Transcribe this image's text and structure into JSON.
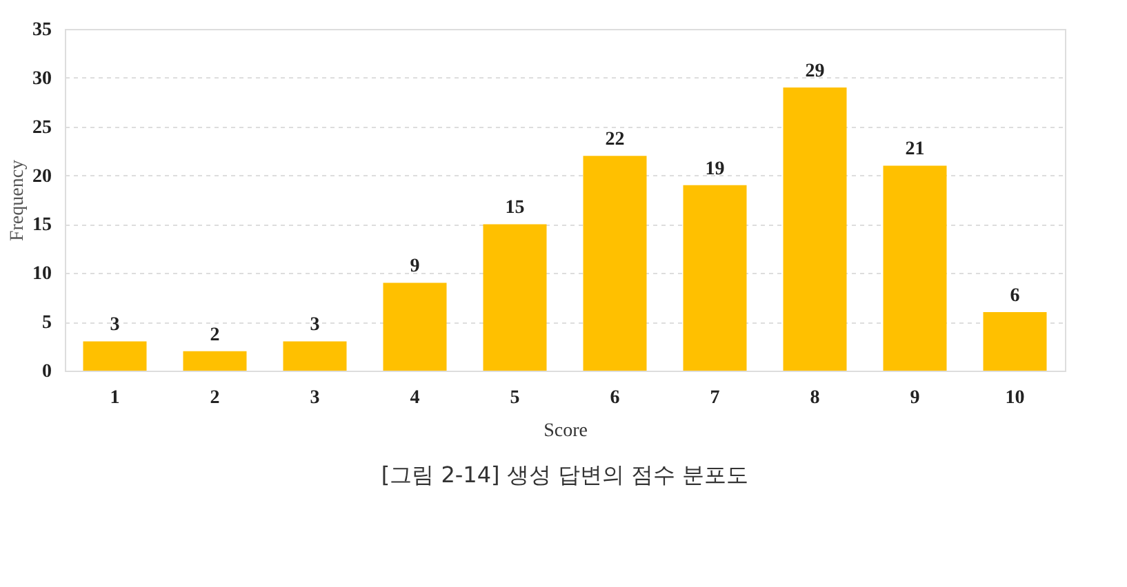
{
  "chart_data": {
    "type": "bar",
    "xlabel": "Score",
    "ylabel": "Frequency",
    "categories": [
      "1",
      "2",
      "3",
      "4",
      "5",
      "6",
      "7",
      "8",
      "9",
      "10"
    ],
    "values": [
      3,
      2,
      3,
      9,
      15,
      22,
      19,
      29,
      21,
      6
    ],
    "color": "#ffc000",
    "ylim": [
      0,
      35
    ],
    "yticks": [
      0,
      5,
      10,
      15,
      20,
      25,
      30,
      35
    ],
    "grid": "y",
    "data_labels": true,
    "annotations": [
      "[그림 2-14] 생성 답변의 점수 분포도"
    ]
  }
}
